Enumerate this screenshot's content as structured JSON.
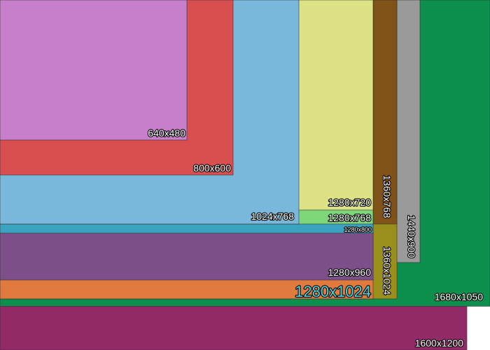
{
  "rectangles": [
    {
      "label": "1600x1200",
      "color": "#922a68"
    },
    {
      "label": "1680x1050",
      "color": "#0d8f4d"
    },
    {
      "label": "1440x900",
      "color": "#9a9a9a"
    },
    {
      "label": "1360x1024",
      "color": "#9a8f1c"
    },
    {
      "label": "1360x768",
      "color": "#7f5218"
    },
    {
      "label": "1280x1024",
      "color": "#e07a3e"
    },
    {
      "label": "1280x960",
      "color": "#7d4f88"
    },
    {
      "label": "1280x800",
      "color": "#3aa3c0"
    },
    {
      "label": "1280x768",
      "color": "#7ed67a"
    },
    {
      "label": "1280x720",
      "color": "#dde384"
    },
    {
      "label": "1024x768",
      "color": "#79b8da"
    },
    {
      "label": "800x600",
      "color": "#d94f4f"
    },
    {
      "label": "640x480",
      "color": "#c77fcb"
    }
  ]
}
